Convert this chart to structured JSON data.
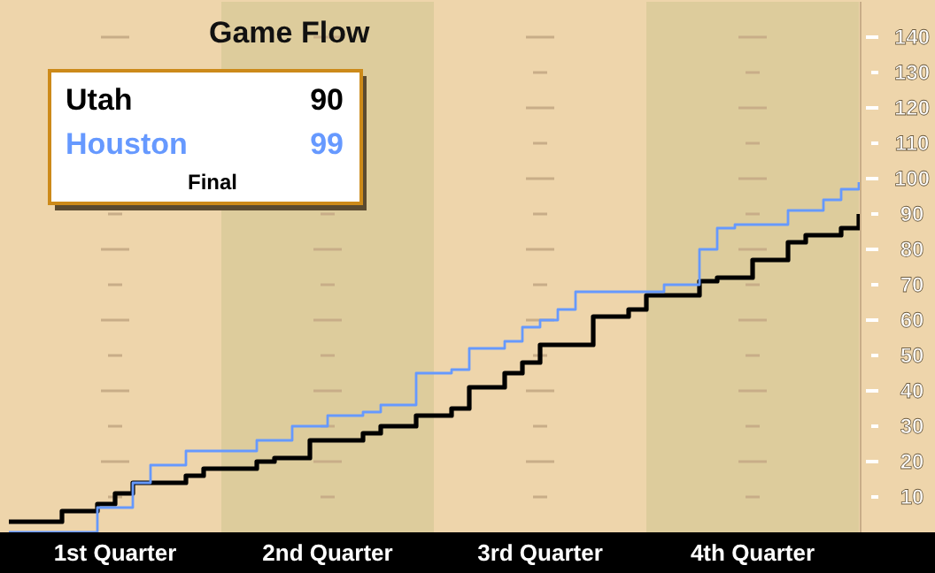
{
  "chart_data": {
    "type": "step",
    "title": "Game Flow",
    "ylim": [
      0,
      150
    ],
    "categories": [
      null,
      null,
      null,
      null,
      null,
      null,
      "1st Quarter",
      null,
      null,
      null,
      null,
      null,
      null,
      null,
      null,
      null,
      null,
      null,
      "2nd Quarter",
      null,
      null,
      null,
      null,
      null,
      null,
      null,
      null,
      null,
      null,
      null,
      "3rd Quarter",
      null,
      null,
      null,
      null,
      null,
      null,
      null,
      null,
      null,
      null,
      null,
      "4th Quarter",
      null,
      null,
      null,
      null,
      null,
      null
    ],
    "yticks": [
      10,
      20,
      30,
      40,
      50,
      60,
      70,
      80,
      90,
      100,
      110,
      120,
      130,
      140
    ],
    "grid": "y",
    "legend": "top left",
    "annotations": [
      "90",
      "99",
      "Final"
    ],
    "series": [
      {
        "name": "Utah",
        "color": "#000000",
        "values": [
          3,
          3,
          3,
          6,
          6,
          8,
          11,
          14,
          14,
          14,
          16,
          18,
          18,
          18,
          20,
          21,
          21,
          26,
          26,
          26,
          28,
          30,
          30,
          33,
          33,
          35,
          41,
          41,
          45,
          48,
          53,
          53,
          53,
          61,
          61,
          63,
          67,
          67,
          67,
          71,
          72,
          72,
          77,
          77,
          82,
          84,
          84,
          86,
          90
        ]
      },
      {
        "name": "Houston",
        "color": "#6699ff",
        "values": [
          0,
          0,
          0,
          0,
          0,
          7,
          7,
          14,
          19,
          19,
          23,
          23,
          23,
          23,
          26,
          26,
          30,
          30,
          33,
          33,
          34,
          36,
          36,
          45,
          45,
          46,
          52,
          52,
          54,
          58,
          60,
          63,
          68,
          68,
          68,
          68,
          68,
          70,
          70,
          80,
          86,
          87,
          87,
          87,
          91,
          91,
          94,
          97,
          99
        ]
      }
    ]
  }
}
